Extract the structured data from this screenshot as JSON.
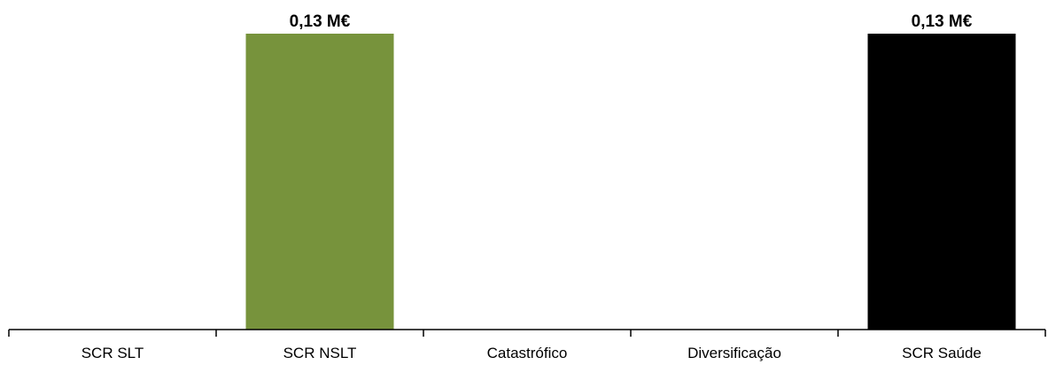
{
  "chart_data": {
    "type": "bar",
    "categories": [
      "SCR SLT",
      "SCR NSLT",
      "Catastrófico",
      "Diversificação",
      "SCR Saúde"
    ],
    "values": [
      0,
      0.13,
      0,
      0,
      0.13
    ],
    "data_labels": [
      "",
      "0,13 M€",
      "",
      "",
      "0,13 M€"
    ],
    "colors": [
      "#77933C",
      "#77933C",
      "#77933C",
      "#77933C",
      "#000000"
    ],
    "ylim": [
      0,
      0.13
    ],
    "grid": false,
    "legend": "none"
  }
}
